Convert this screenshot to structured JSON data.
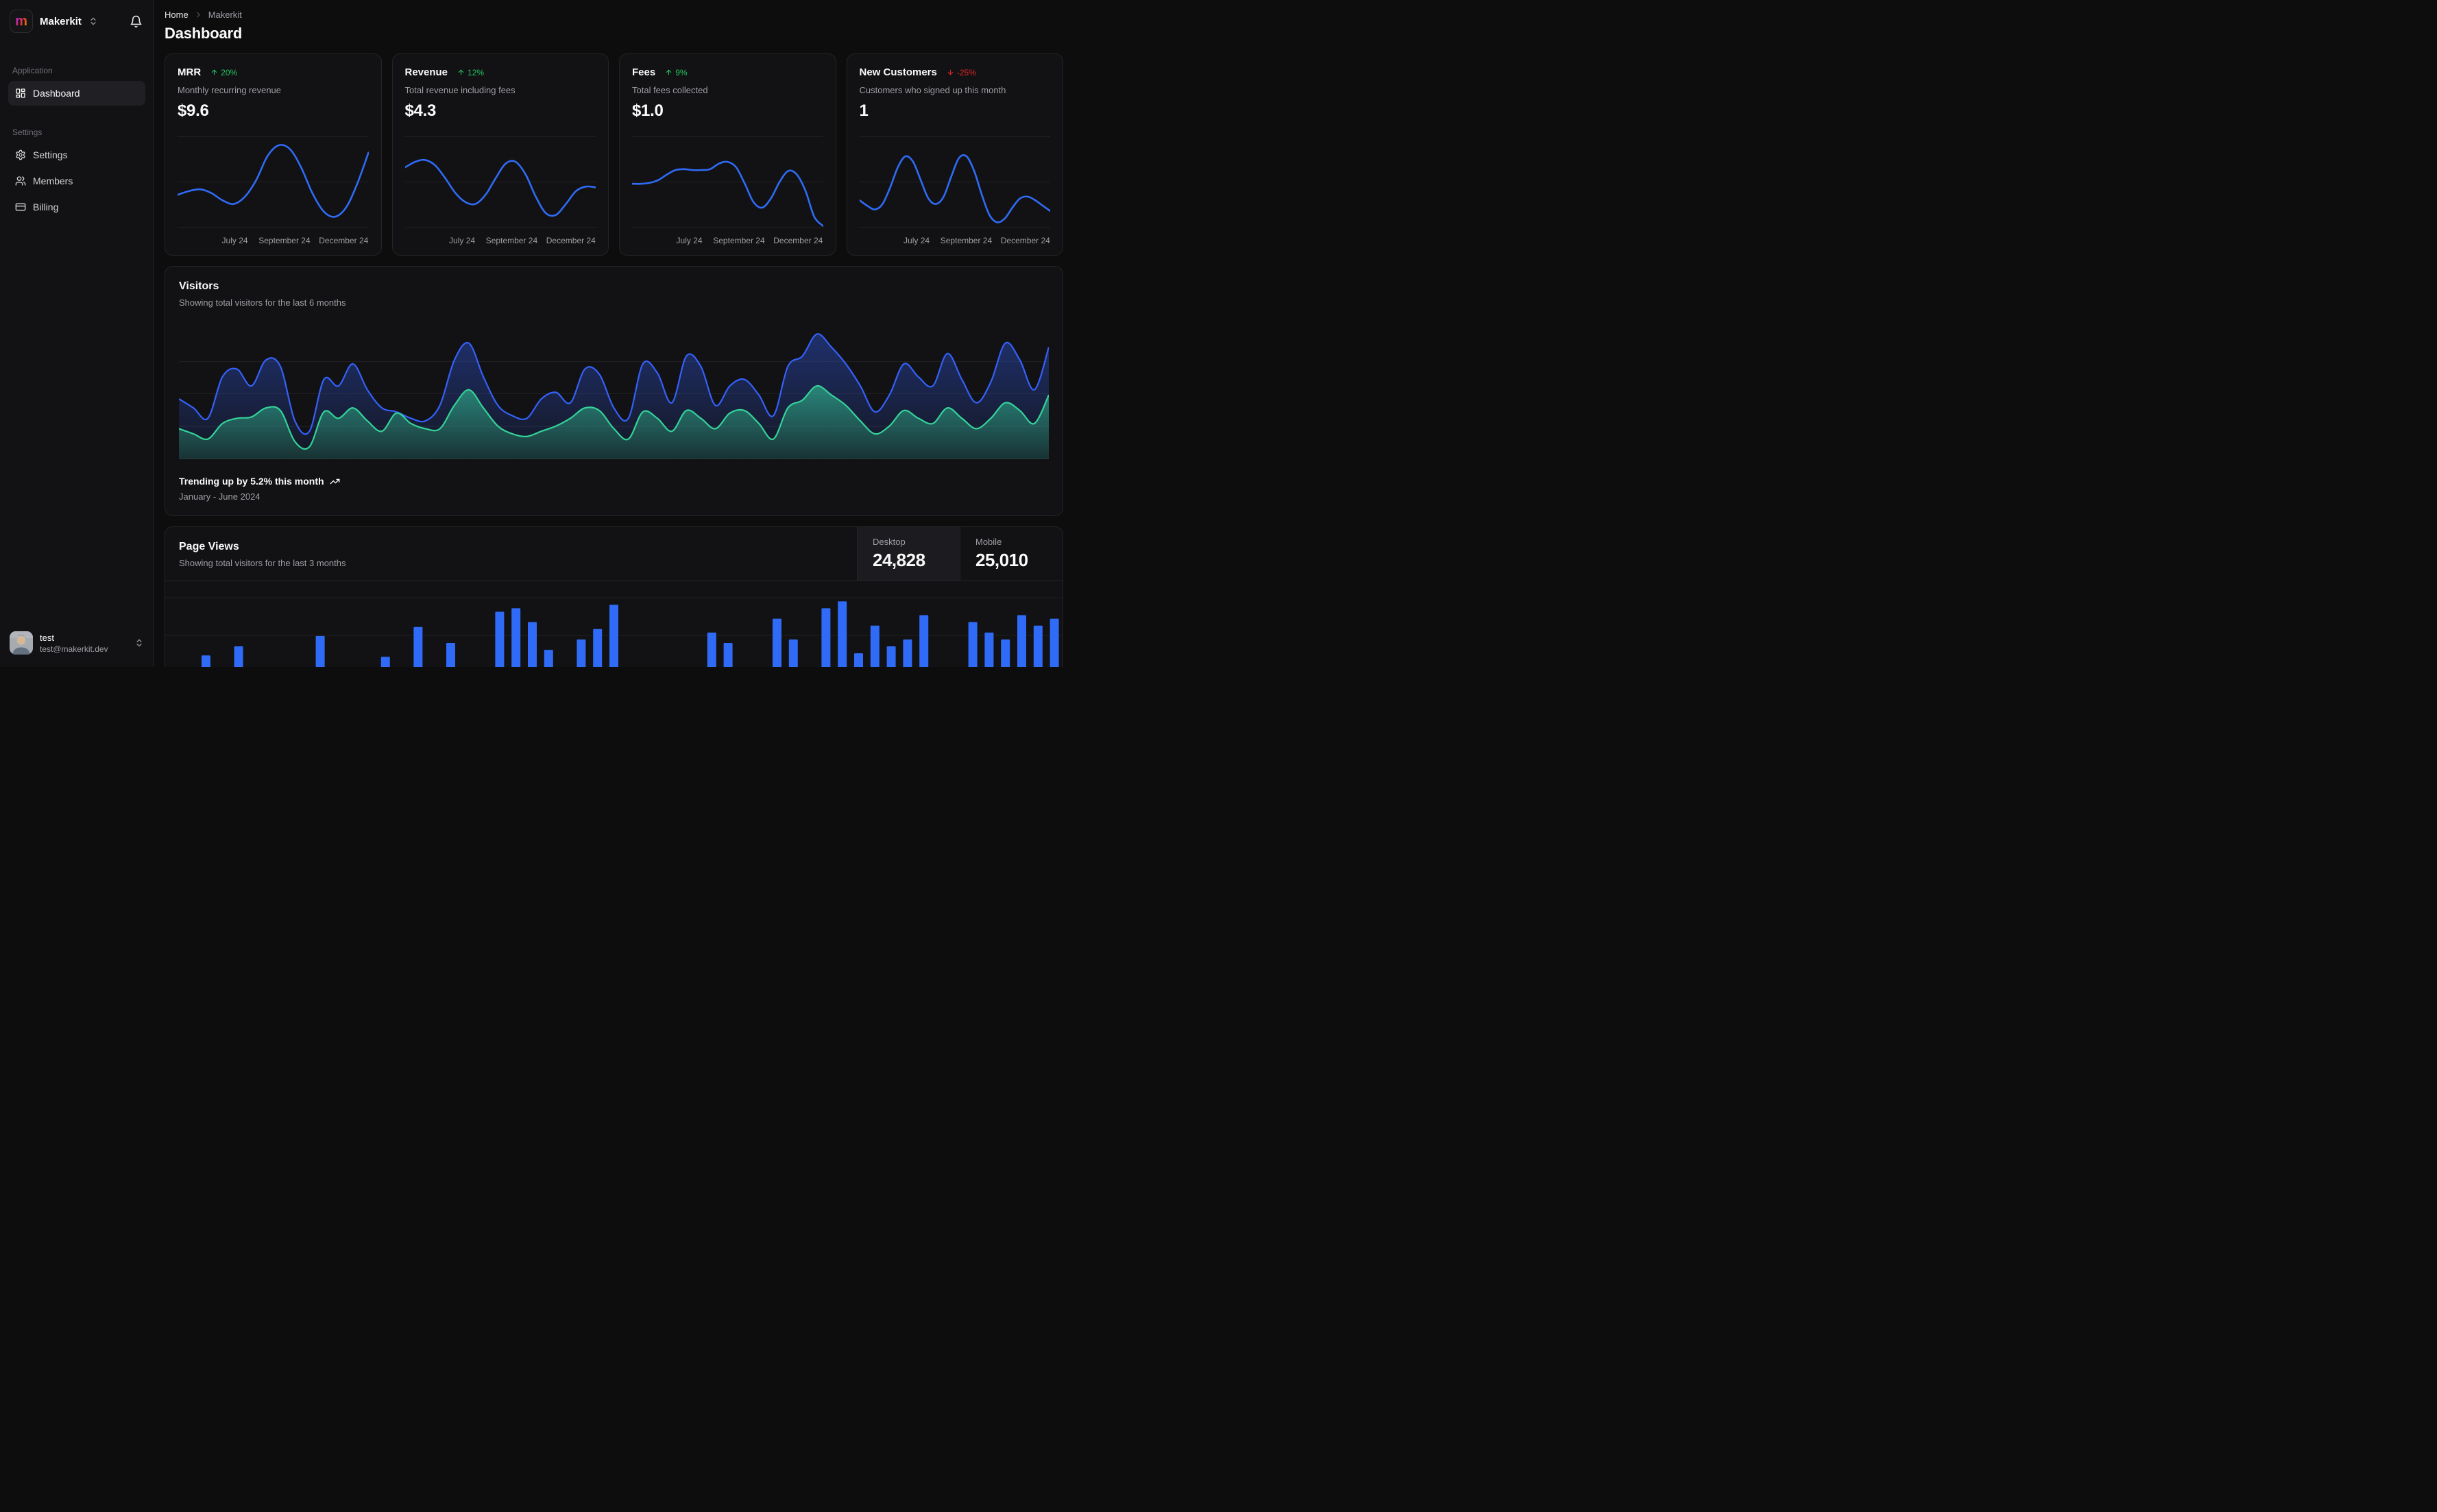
{
  "sidebar": {
    "workspace": "Makerkit",
    "logo_letter": "m",
    "sections": [
      {
        "label": "Application",
        "items": [
          {
            "label": "Dashboard",
            "icon": "layout-dashboard",
            "active": true
          }
        ]
      },
      {
        "label": "Settings",
        "items": [
          {
            "label": "Settings",
            "icon": "gear"
          },
          {
            "label": "Members",
            "icon": "users"
          },
          {
            "label": "Billing",
            "icon": "credit-card"
          }
        ]
      }
    ],
    "user": {
      "name": "test",
      "email": "test@makerkit.dev"
    }
  },
  "header": {
    "breadcrumb_home": "Home",
    "breadcrumb_current": "Makerkit",
    "title": "Dashboard"
  },
  "stat_cards": [
    {
      "title": "MRR",
      "trend": "20%",
      "trend_dir": "up",
      "subtitle": "Monthly recurring revenue",
      "value": "$9.6"
    },
    {
      "title": "Revenue",
      "trend": "12%",
      "trend_dir": "up",
      "subtitle": "Total revenue including fees",
      "value": "$4.3"
    },
    {
      "title": "Fees",
      "trend": "9%",
      "trend_dir": "up",
      "subtitle": "Total fees collected",
      "value": "$1.0"
    },
    {
      "title": "New Customers",
      "trend": "-25%",
      "trend_dir": "down",
      "subtitle": "Customers who signed up this month",
      "value": "1"
    }
  ],
  "visitors": {
    "title": "Visitors",
    "subtitle": "Showing total visitors for the last 6 months",
    "footer_bold": "Trending up by 5.2% this month",
    "footer_sub": "January - June 2024"
  },
  "page_views": {
    "title": "Page Views",
    "subtitle": "Showing total visitors for the last 3 months",
    "tabs": [
      {
        "label": "Desktop",
        "value": "24,828",
        "active": true
      },
      {
        "label": "Mobile",
        "value": "25,010",
        "active": false
      }
    ]
  },
  "colors": {
    "accent_blue": "#2f6bf6",
    "accent_green": "#34d399",
    "trend_up_green": "#22c55e",
    "trend_down_red": "#dc2626",
    "card_bg": "#121214",
    "border": "#242428",
    "muted_text": "#9f9fa6"
  },
  "chart_data": [
    {
      "id": "spark-mrr",
      "type": "line",
      "title": "MRR sparkline",
      "color": "#2f6bf6",
      "ylim": [
        0,
        100
      ],
      "grid": true,
      "x_ticks": [
        "July 24",
        "September 24",
        "December 24"
      ],
      "values": [
        36,
        40,
        42,
        38,
        30,
        26,
        34,
        52,
        78,
        90,
        86,
        66,
        38,
        18,
        12,
        22,
        48,
        82
      ]
    },
    {
      "id": "spark-revenue",
      "type": "line",
      "title": "Revenue sparkline",
      "color": "#2f6bf6",
      "ylim": [
        0,
        100
      ],
      "grid": true,
      "x_ticks": [
        "July 24",
        "September 24",
        "December 24"
      ],
      "values": [
        66,
        72,
        74,
        68,
        54,
        38,
        28,
        26,
        36,
        54,
        70,
        72,
        58,
        34,
        16,
        14,
        26,
        40,
        45,
        44
      ]
    },
    {
      "id": "spark-fees",
      "type": "line",
      "title": "Fees sparkline",
      "color": "#2f6bf6",
      "ylim": [
        0,
        100
      ],
      "grid": true,
      "x_ticks": [
        "July 24",
        "September 24",
        "December 24"
      ],
      "values": [
        48,
        48,
        49,
        52,
        58,
        63,
        64,
        63,
        63,
        64,
        70,
        72,
        66,
        48,
        28,
        22,
        32,
        50,
        62,
        58,
        40,
        12,
        2
      ]
    },
    {
      "id": "spark-new-customers",
      "type": "line",
      "title": "New Customers sparkline",
      "color": "#2f6bf6",
      "ylim": [
        0,
        100
      ],
      "grid": true,
      "x_ticks": [
        "July 24",
        "September 24",
        "December 24"
      ],
      "values": [
        30,
        24,
        20,
        26,
        44,
        66,
        78,
        72,
        52,
        32,
        26,
        34,
        56,
        76,
        78,
        62,
        36,
        14,
        6,
        10,
        22,
        32,
        34,
        30,
        24,
        18
      ]
    },
    {
      "id": "visitors-area",
      "type": "area",
      "title": "Visitors",
      "x_range": "January - June 2024",
      "ylim": [
        0,
        100
      ],
      "grid": true,
      "legend": "none",
      "series": [
        {
          "name": "desktop",
          "color": "#3461fb",
          "values": [
            45,
            38,
            30,
            62,
            68,
            55,
            75,
            70,
            28,
            20,
            60,
            55,
            72,
            52,
            38,
            35,
            30,
            28,
            40,
            75,
            88,
            62,
            40,
            32,
            30,
            45,
            50,
            42,
            68,
            64,
            38,
            30,
            72,
            65,
            42,
            78,
            70,
            40,
            55,
            60,
            48,
            32,
            70,
            78,
            95,
            85,
            72,
            55,
            35,
            48,
            72,
            62,
            55,
            80,
            60,
            42,
            58,
            88,
            75,
            52,
            85
          ]
        },
        {
          "name": "mobile",
          "color": "#34d399",
          "values": [
            22,
            18,
            14,
            26,
            30,
            31,
            38,
            36,
            12,
            8,
            35,
            30,
            38,
            28,
            20,
            34,
            26,
            22,
            22,
            40,
            52,
            38,
            24,
            18,
            16,
            20,
            24,
            30,
            38,
            36,
            22,
            14,
            35,
            30,
            20,
            36,
            30,
            22,
            34,
            36,
            26,
            14,
            38,
            44,
            55,
            48,
            40,
            28,
            18,
            24,
            36,
            30,
            26,
            38,
            30,
            22,
            30,
            42,
            36,
            26,
            48
          ]
        }
      ]
    },
    {
      "id": "page-views-bars",
      "type": "bar",
      "title": "Page Views (Desktop)",
      "color": "#2f6bf6",
      "ylim": [
        0,
        179
      ],
      "grid": true,
      "values": [
        18,
        5,
        72,
        12,
        85,
        8,
        20,
        3,
        30,
        100,
        15,
        6,
        25,
        70,
        10,
        113,
        18,
        90,
        8,
        28,
        135,
        140,
        120,
        80,
        12,
        95,
        110,
        145,
        20,
        6,
        32,
        10,
        24,
        105,
        90,
        14,
        8,
        125,
        95,
        22,
        140,
        150,
        75,
        115,
        85,
        95,
        130,
        12,
        30,
        120,
        105,
        95,
        130,
        115,
        125
      ]
    }
  ]
}
